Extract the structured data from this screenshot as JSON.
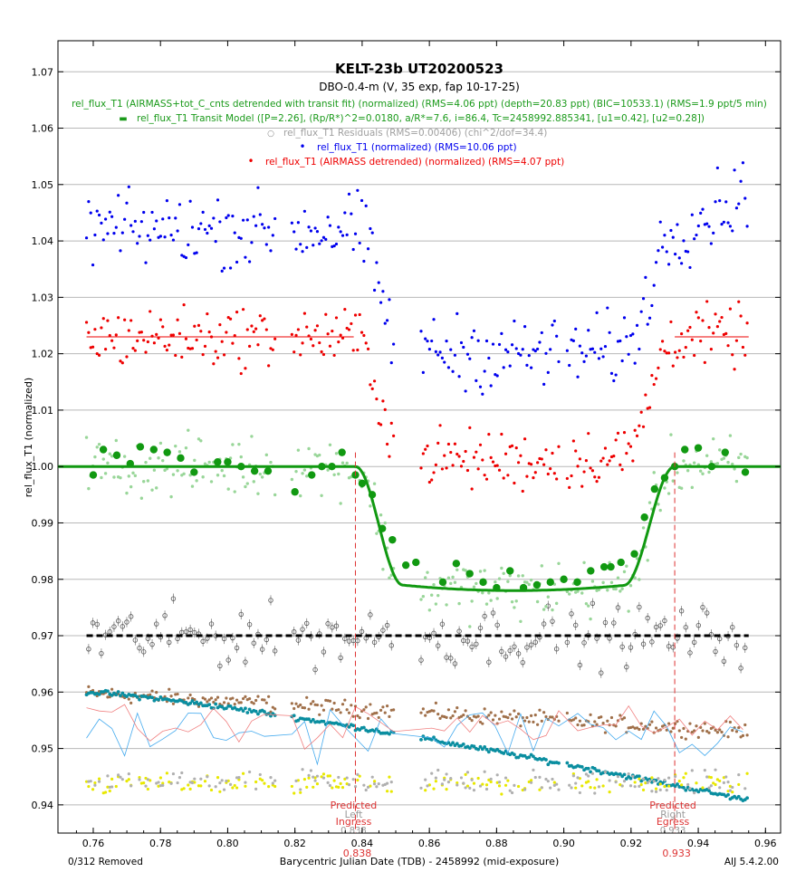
{
  "chart_data": {
    "type": "scatter",
    "title": "KELT-23b UT20200523",
    "subtitle": "DBO-0.4-m (V, 35 exp, fap 10-17-25)",
    "xlabel": "Barycentric Julian Date (TDB) - 2458992 (mid-exposure)",
    "ylabel": "rel_flux_T1 (normalized)",
    "xlim": [
      0.7495,
      0.9645
    ],
    "ylim": [
      0.935,
      1.0755
    ],
    "x_ticks": [
      0.76,
      0.78,
      0.8,
      0.82,
      0.84,
      0.86,
      0.88,
      0.9,
      0.92,
      0.94,
      0.96
    ],
    "x_tick_labels": [
      "0.76",
      "0.78",
      "0.80",
      "0.82",
      "0.84",
      "0.86",
      "0.88",
      "0.90",
      "0.92",
      "0.94",
      "0.96"
    ],
    "y_ticks": [
      0.94,
      0.95,
      0.96,
      0.97,
      0.98,
      0.99,
      1.0,
      1.01,
      1.02,
      1.03,
      1.04,
      1.05,
      1.06,
      1.07
    ],
    "y_tick_labels": [
      "0.94",
      "0.95",
      "0.96",
      "0.97",
      "0.98",
      "0.99",
      "1.00",
      "1.01",
      "1.02",
      "1.03",
      "1.04",
      "1.05",
      "1.06",
      "1.07"
    ],
    "grid": true,
    "legend_placement": "top-center",
    "legend": [
      {
        "text": "rel_flux_T1 (AIRMASS+tot_C_cnts detrended with transit fit) (normalized) (RMS=4.06 ppt) (depth=20.83 ppt) (BIC=10533.1) (RMS=1.9 ppt/5 min)",
        "color": "#1a9a1a",
        "symbol": ""
      },
      {
        "text": "rel_flux_T1 Transit Model ([P=2.26], (Rp/R*)^2=0.0180, a/R*=7.6, i=86.4, Tc=2458992.885341, [u1=0.42], [u2=0.28])",
        "color": "#1a9a1a",
        "symbol": "▬"
      },
      {
        "text": "rel_flux_T1 Residuals (RMS=0.00406) (chi^2/dof=34.4)",
        "color": "#a0a0a0",
        "symbol": "○"
      },
      {
        "text": "rel_flux_T1 (normalized) (RMS=10.06 ppt)",
        "color": "#0000ee",
        "symbol": "•"
      },
      {
        "text": "rel_flux_T1 (AIRMASS detrended) (normalized) (RMS=4.07 ppt)",
        "color": "#ee0000",
        "symbol": "•"
      }
    ],
    "markers": [
      {
        "x": 0.838,
        "line1": "Predicted",
        "line2": "Left",
        "line3": "Ingress",
        "value": "0.838",
        "color": "#dd3333"
      },
      {
        "x": 0.933,
        "line1": "Predicted",
        "line2": "Right",
        "line3": "Egress",
        "value": "0.933",
        "color": "#dd3333"
      }
    ],
    "model": {
      "baseline": 1.0,
      "depth": 0.0208,
      "ingress_start": 0.838,
      "ingress_end": 0.852,
      "egress_start": 0.918,
      "egress_end": 0.933,
      "tc": 0.885341,
      "color": "#119911"
    },
    "series": [
      {
        "name": "rel_flux_T1 (normalized)",
        "color": "#0000ee",
        "kind": "raw",
        "offset": 1.042,
        "noise": 0.005,
        "x_range": [
          0.758,
          0.955
        ]
      },
      {
        "name": "rel_flux_T1 (AIRMASS detrended) (normalized)",
        "color": "#ee0000",
        "kind": "detrended",
        "offset": 1.023,
        "noise": 0.004,
        "x_range": [
          0.758,
          0.955
        ]
      },
      {
        "name": "rel_flux_T1 (AIRMASS+tot_C_cnts detrended with transit fit) (normalized)",
        "color": "#99d699",
        "kind": "detrended_fit",
        "offset": 1.0,
        "noise": 0.004,
        "x_range": [
          0.758,
          0.955
        ]
      },
      {
        "name": "rel_flux_T1 Residuals",
        "color": "#606060",
        "kind": "residuals",
        "offset": 0.97,
        "noise": 0.004,
        "x_range": [
          0.758,
          0.955
        ]
      }
    ],
    "binned_points": [
      [
        0.76,
        0.9985
      ],
      [
        0.763,
        1.003
      ],
      [
        0.767,
        1.002
      ],
      [
        0.771,
        1.0005
      ],
      [
        0.774,
        1.0035
      ],
      [
        0.778,
        1.003
      ],
      [
        0.782,
        1.0025
      ],
      [
        0.786,
        1.0015
      ],
      [
        0.79,
        0.999
      ],
      [
        0.797,
        1.0008
      ],
      [
        0.8,
        1.0008
      ],
      [
        0.804,
        1.0
      ],
      [
        0.808,
        0.9992
      ],
      [
        0.812,
        0.9992
      ],
      [
        0.82,
        0.9955
      ],
      [
        0.825,
        0.9985
      ],
      [
        0.828,
        1.0
      ],
      [
        0.831,
        1.0
      ],
      [
        0.834,
        1.0025
      ],
      [
        0.838,
        0.9985
      ],
      [
        0.84,
        0.997
      ],
      [
        0.843,
        0.995
      ],
      [
        0.846,
        0.989
      ],
      [
        0.849,
        0.987
      ],
      [
        0.853,
        0.9825
      ],
      [
        0.856,
        0.983
      ],
      [
        0.864,
        0.9795
      ],
      [
        0.868,
        0.9828
      ],
      [
        0.872,
        0.981
      ],
      [
        0.876,
        0.9795
      ],
      [
        0.88,
        0.9785
      ],
      [
        0.884,
        0.9815
      ],
      [
        0.888,
        0.9785
      ],
      [
        0.892,
        0.979
      ],
      [
        0.896,
        0.9795
      ],
      [
        0.9,
        0.98
      ],
      [
        0.904,
        0.9795
      ],
      [
        0.908,
        0.9815
      ],
      [
        0.912,
        0.9822
      ],
      [
        0.914,
        0.9822
      ],
      [
        0.917,
        0.983
      ],
      [
        0.921,
        0.9845
      ],
      [
        0.924,
        0.991
      ],
      [
        0.927,
        0.996
      ],
      [
        0.93,
        0.998
      ],
      [
        0.933,
        1.0
      ],
      [
        0.936,
        1.003
      ],
      [
        0.94,
        1.0033
      ],
      [
        0.944,
        1.0
      ],
      [
        0.948,
        1.0025
      ],
      [
        0.954,
        0.999
      ]
    ],
    "comparison_stars": [
      {
        "name": "",
        "color": "#a0704a",
        "kind": "trend",
        "start": 0.9598,
        "end": 0.953,
        "noise": 0.0012
      },
      {
        "name": "",
        "color": "#0a8ea0",
        "kind": "trend_dots",
        "start": 0.96,
        "end": 0.9408,
        "noise": 0.0004
      },
      {
        "name": "",
        "color": "#e8e800",
        "kind": "band",
        "center": 0.9437,
        "noise": 0.0015
      },
      {
        "name": "",
        "color": "#b0b0b0",
        "kind": "band",
        "center": 0.944,
        "noise": 0.0018
      },
      {
        "name": "",
        "color": "#44aaee",
        "kind": "line",
        "center": 0.953,
        "noise": 0.004
      },
      {
        "name": "",
        "color": "#f08080",
        "kind": "line",
        "center": 0.954,
        "noise": 0.003
      }
    ],
    "residual_zero": 0.97,
    "bottom_left_text": "0/312 Removed",
    "bottom_right_text": "AIJ 5.4.2.00"
  }
}
